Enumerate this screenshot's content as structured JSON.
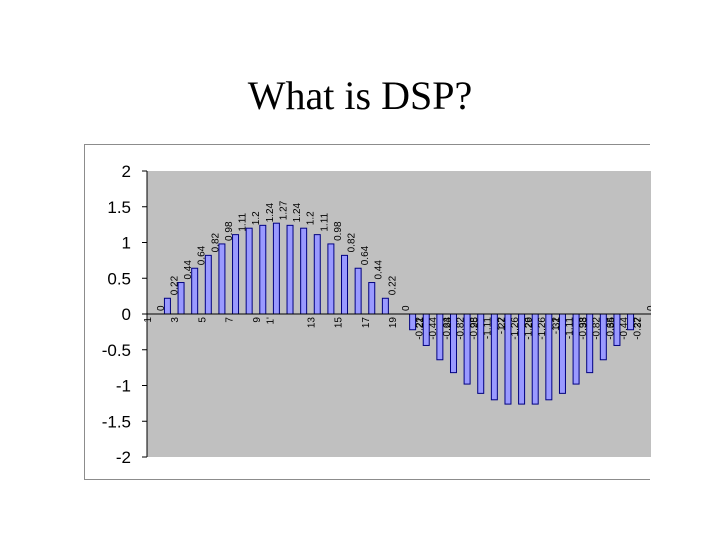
{
  "slide": {
    "title": "What is DSP?"
  },
  "colors": {
    "bar_fill": "#9a9aff",
    "bar_stroke": "#000080",
    "plot_bg": "#c0c0c0",
    "axis": "#000000"
  },
  "chart_data": {
    "type": "bar",
    "title": "",
    "xlabel": "",
    "ylabel": "",
    "ylim": [
      -2,
      2
    ],
    "yticks": [
      2,
      1.5,
      1,
      0.5,
      0,
      -0.5,
      -1,
      -1.5,
      -2
    ],
    "ytick_labels": [
      "2",
      "1.5",
      "1",
      "0.5",
      "0",
      "-0.5",
      "-1",
      "-1.5",
      "-2"
    ],
    "grid": false,
    "legend": "none",
    "categories": [
      "1",
      "2",
      "3",
      "4",
      "5",
      "6",
      "7",
      "8",
      "9",
      "10",
      "11",
      "12",
      "13",
      "14",
      "15",
      "16",
      "17",
      "18",
      "19",
      "20",
      "21",
      "22",
      "23",
      "24",
      "25",
      "26",
      "27",
      "28",
      "29",
      "30",
      "31",
      "32",
      "33",
      "34",
      "35",
      "36",
      "37"
    ],
    "category_labels": [
      "1",
      "",
      "3",
      "",
      "5",
      "",
      "7",
      "",
      "9",
      "1'",
      "",
      "",
      "13",
      "",
      "15",
      "",
      "17",
      "",
      "19",
      "",
      "21",
      "",
      "23",
      "",
      "25",
      "",
      "27",
      "",
      "29",
      "",
      "31",
      "",
      "33",
      "",
      "35",
      "",
      "37"
    ],
    "values": [
      0,
      0.22,
      0.44,
      0.64,
      0.82,
      0.98,
      1.11,
      1.2,
      1.24,
      1.27,
      1.24,
      1.2,
      1.11,
      0.98,
      0.82,
      0.64,
      0.44,
      0.22,
      0,
      -0.22,
      -0.44,
      -0.64,
      -0.82,
      -0.98,
      -1.11,
      -1.2,
      -1.26,
      -1.26,
      -1.26,
      -1.2,
      -1.11,
      -0.98,
      -0.82,
      -0.64,
      -0.44,
      -0.22,
      0
    ],
    "value_labels": [
      "0",
      "0.22",
      "0.44",
      "0.64",
      "0.82",
      "0.98",
      "1.11",
      "1.2",
      "1.24",
      "1.27",
      "1.24",
      "1.2",
      "1.11",
      "0.98",
      "0.82",
      "0.64",
      "0.44",
      "0.22",
      "0",
      "-0.22",
      "-0.44",
      "-0.64",
      "-0.82",
      "-0.98",
      "-1.11",
      "-1.2",
      "-1.26",
      "-1.26",
      "-1.26",
      "-1.2",
      "-1.11",
      "-0.98",
      "-0.82",
      "-0.64",
      "-0.44",
      "-0.22",
      "0"
    ]
  }
}
